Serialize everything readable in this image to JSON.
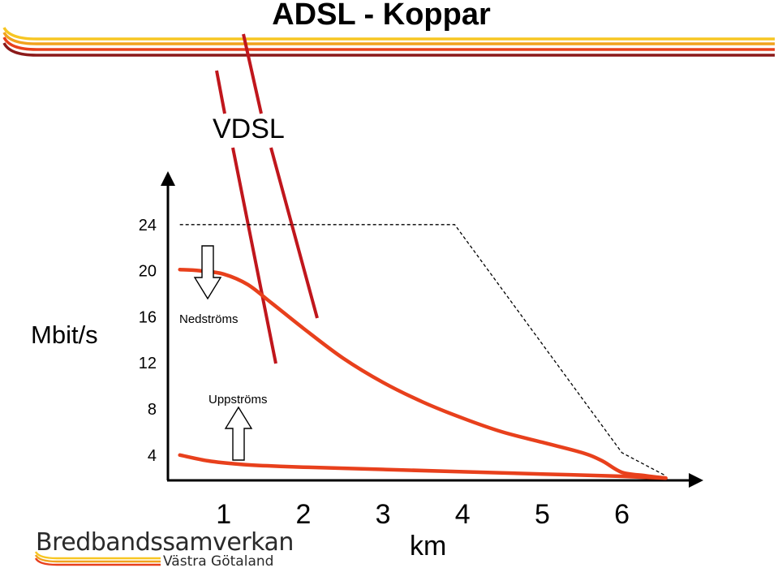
{
  "title": "ADSL - Koppar",
  "vdsl_label": "VDSL",
  "logo": {
    "line1": "Bredbandssamverkan",
    "line2": "Västra Götaland"
  },
  "colors": {
    "curve": "#e8401c",
    "vdsl_line": "#c0161c",
    "axis": "#000000",
    "theoretical": "#000000",
    "stripes": [
      "#f7c623",
      "#f1a21d",
      "#e8401c",
      "#8b1a1a"
    ]
  },
  "chart_data": {
    "type": "line",
    "title": "ADSL - Koppar",
    "xlabel": "km",
    "ylabel": "Mbit/s",
    "x_ticks": [
      1,
      2,
      3,
      4,
      5,
      6
    ],
    "y_ticks": [
      4,
      8,
      12,
      16,
      20,
      24
    ],
    "xlim": [
      0.3,
      6.9
    ],
    "ylim": [
      1.8,
      28
    ],
    "grid": false,
    "series": [
      {
        "name": "Nedströms",
        "style": "solid",
        "x": [
          0.45,
          0.7,
          1.0,
          1.3,
          1.6,
          2.0,
          2.5,
          3.0,
          3.5,
          4.0,
          4.5,
          5.0,
          5.5,
          5.75,
          6.0,
          6.3,
          6.55
        ],
        "y": [
          20.1,
          20.0,
          19.7,
          18.8,
          17.2,
          15.0,
          12.4,
          10.3,
          8.6,
          7.2,
          6.0,
          5.1,
          4.2,
          3.5,
          2.5,
          2.2,
          2.0
        ]
      },
      {
        "name": "Uppströms",
        "style": "solid",
        "x": [
          0.45,
          0.8,
          1.2,
          1.6,
          2.0,
          3.0,
          4.0,
          5.0,
          6.0,
          6.55
        ],
        "y": [
          4.0,
          3.5,
          3.2,
          3.05,
          2.95,
          2.75,
          2.55,
          2.35,
          2.15,
          2.0
        ]
      },
      {
        "name": "",
        "style": "dashed",
        "x": [
          0.45,
          3.9,
          6.0,
          6.55
        ],
        "y": [
          24.0,
          24.0,
          4.2,
          2.2
        ]
      }
    ],
    "annotations": [
      {
        "text": "Nedströms",
        "arrow": "down",
        "x": 1.0,
        "y": 18.5
      },
      {
        "text": "Uppströms",
        "arrow": "up",
        "x": 1.2,
        "y": 5.8
      }
    ]
  }
}
